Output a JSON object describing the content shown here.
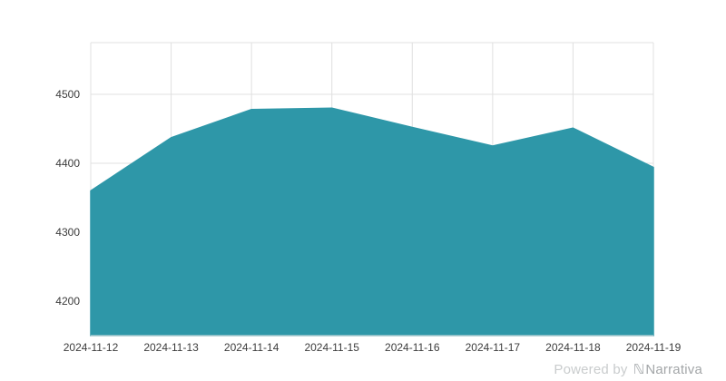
{
  "chart_data": {
    "type": "area",
    "title": "",
    "xlabel": "",
    "ylabel": "",
    "x": [
      "2024-11-12",
      "2024-11-13",
      "2024-11-14",
      "2024-11-15",
      "2024-11-16",
      "2024-11-17",
      "2024-11-18",
      "2024-11-19"
    ],
    "values": [
      4360,
      4437,
      4478,
      4480,
      4452,
      4425,
      4451,
      4394
    ],
    "yticks": [
      4200,
      4300,
      4400,
      4500
    ],
    "ylim": [
      4150,
      4575
    ],
    "grid": true,
    "legend": "none",
    "fill_color": "#2e97a8",
    "stroke_color": "#2e97a8",
    "grid_color": "#e0e0e0",
    "label_color": "#3c3c3c",
    "background_color": "#ffffff"
  },
  "footer": {
    "powered_by_label": "Powered by",
    "brand_logo_glyph": "ℕ",
    "brand_name": "Narrativa"
  }
}
